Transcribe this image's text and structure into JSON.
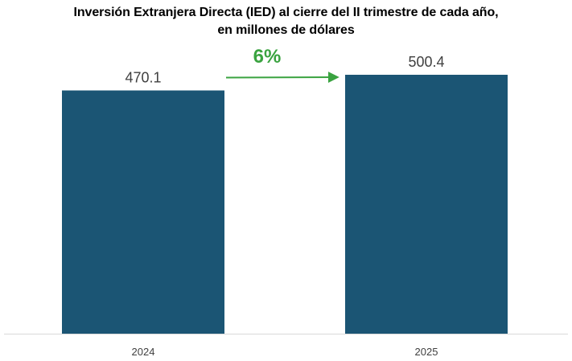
{
  "chart_data": {
    "type": "bar",
    "title": "Inversión Extranjera Directa (IED) al cierre del II trimestre de cada año,",
    "subtitle": "en millones de dólares",
    "categories": [
      "2024",
      "2025"
    ],
    "values": [
      470.1,
      500.4
    ],
    "value_labels": [
      "470.1",
      "500.4"
    ],
    "xlabel": "",
    "ylabel": "",
    "ylim": [
      0,
      500.4
    ],
    "grid": false,
    "annotation": {
      "text": "6%",
      "from": "2024",
      "to": "2025"
    }
  },
  "colors": {
    "bar": "#1b5574",
    "annotation": "#3aa340",
    "axis": "#d9d9d9"
  }
}
